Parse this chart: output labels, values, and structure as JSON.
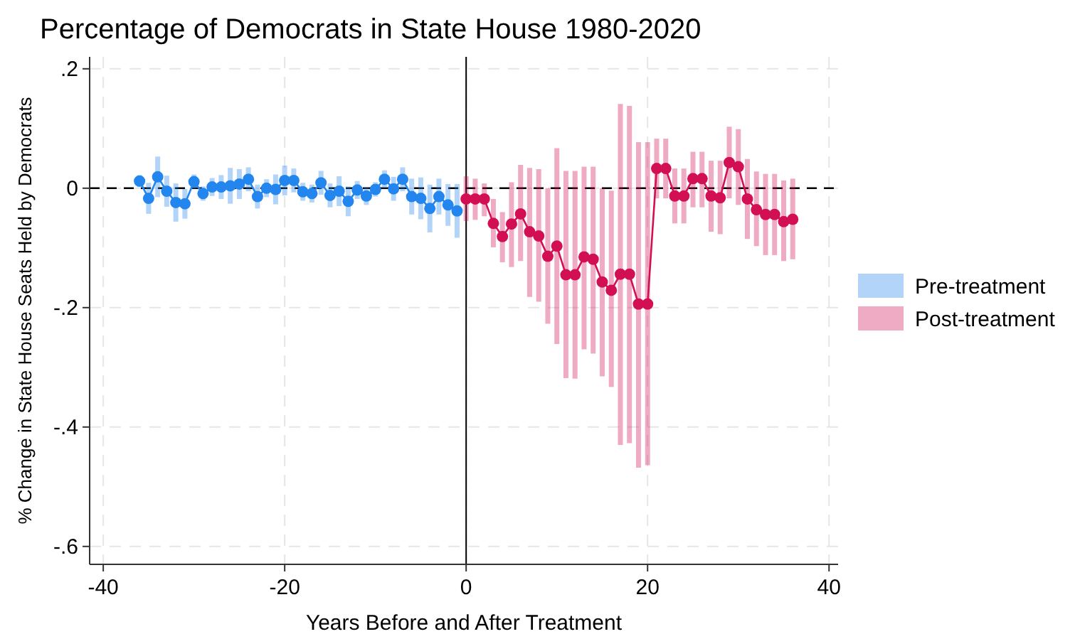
{
  "chart_data": {
    "type": "line",
    "title": "Percentage of Democrats in State House 1980-2020",
    "xlabel": "Years Before and After Treatment",
    "ylabel": "% Change in State House Seats Held by Democrats",
    "xlim": [
      -41.5,
      41
    ],
    "xticks": [
      -40,
      -20,
      0,
      20,
      40
    ],
    "ylim": [
      -0.63,
      0.22
    ],
    "yticks": [
      {
        "value": 0.2,
        "label": ".2"
      },
      {
        "value": 0,
        "label": "0"
      },
      {
        "value": -0.2,
        "label": "-.2"
      },
      {
        "value": -0.4,
        "label": "-.4"
      },
      {
        "value": -0.6,
        "label": "-.6"
      }
    ],
    "grid": true,
    "legend": "right",
    "marker": "circle",
    "line_style": "solid",
    "ref_lines": [
      {
        "axis": "y",
        "value": 0,
        "line_style": "dashed",
        "color": "#000000"
      },
      {
        "axis": "x",
        "value": 0,
        "line_style": "solid",
        "color": "#000000"
      }
    ],
    "series": [
      {
        "name": "Pre-treatment",
        "color": "#2385ee",
        "x": [
          -36,
          -35,
          -34,
          -33,
          -32,
          -31,
          -30,
          -29,
          -28,
          -27,
          -26,
          -25,
          -24,
          -23,
          -22,
          -21,
          -20,
          -19,
          -18,
          -17,
          -16,
          -15,
          -14,
          -13,
          -12,
          -11,
          -10,
          -9,
          -8,
          -7,
          -6,
          -5,
          -4,
          -3,
          -2,
          -1
        ],
        "values": [
          0.012,
          -0.017,
          0.019,
          -0.005,
          -0.024,
          -0.026,
          0.011,
          -0.009,
          0.002,
          0.002,
          0.004,
          0.007,
          0.015,
          -0.014,
          0,
          -0.002,
          0.013,
          0.013,
          -0.006,
          -0.009,
          0.009,
          -0.012,
          -0.005,
          -0.022,
          -0.003,
          -0.013,
          -0.002,
          0.015,
          -0.001,
          0.015,
          -0.014,
          -0.017,
          -0.034,
          -0.014,
          -0.028,
          -0.038
        ],
        "errors": [
          0.01,
          0.026,
          0.034,
          0.026,
          0.032,
          0.025,
          0.012,
          0.012,
          0.015,
          0.02,
          0.03,
          0.025,
          0.02,
          0.02,
          0.015,
          0.025,
          0.025,
          0.02,
          0.015,
          0.015,
          0.02,
          0.02,
          0.025,
          0.025,
          0.015,
          0.015,
          0.012,
          0.015,
          0.02,
          0.02,
          0.03,
          0.035,
          0.04,
          0.03,
          0.035,
          0.045
        ]
      },
      {
        "name": "Post-treatment",
        "color": "#d20f52",
        "x": [
          0,
          1,
          2,
          3,
          4,
          5,
          6,
          7,
          8,
          9,
          10,
          11,
          12,
          13,
          14,
          15,
          16,
          17,
          18,
          19,
          20,
          21,
          22,
          23,
          24,
          25,
          26,
          27,
          28,
          29,
          30,
          31,
          32,
          33,
          34,
          35,
          36
        ],
        "values": [
          -0.018,
          -0.018,
          -0.018,
          -0.059,
          -0.081,
          -0.06,
          -0.043,
          -0.073,
          -0.08,
          -0.114,
          -0.097,
          -0.145,
          -0.145,
          -0.115,
          -0.119,
          -0.157,
          -0.171,
          -0.144,
          -0.144,
          -0.194,
          -0.194,
          0.033,
          0.033,
          -0.013,
          -0.013,
          0.016,
          0.016,
          -0.013,
          -0.016,
          0.043,
          0.036,
          -0.018,
          -0.036,
          -0.044,
          -0.044,
          -0.056,
          -0.052
        ],
        "errors": [
          [
            -0.055,
            0.02
          ],
          [
            -0.053,
            0.016
          ],
          [
            -0.047,
            0.008
          ],
          [
            -0.099,
            -0.018
          ],
          [
            -0.124,
            -0.04
          ],
          [
            -0.132,
            0.01
          ],
          [
            -0.122,
            0.039
          ],
          [
            -0.182,
            0.034
          ],
          [
            -0.19,
            0.032
          ],
          [
            -0.227,
            0
          ],
          [
            -0.261,
            0.067
          ],
          [
            -0.318,
            0.029
          ],
          [
            -0.319,
            0.029
          ],
          [
            -0.27,
            0.036
          ],
          [
            -0.277,
            0.036
          ],
          [
            -0.315,
            0
          ],
          [
            -0.333,
            -0.004
          ],
          [
            -0.43,
            0.141
          ],
          [
            -0.427,
            0.138
          ],
          [
            -0.468,
            0.077
          ],
          [
            -0.464,
            0.077
          ],
          [
            -0.017,
            0.083
          ],
          [
            -0.017,
            0.083
          ],
          [
            -0.059,
            0.033
          ],
          [
            -0.059,
            0.033
          ],
          [
            -0.032,
            0.061
          ],
          [
            -0.032,
            0.061
          ],
          [
            -0.073,
            0.046
          ],
          [
            -0.077,
            0.046
          ],
          [
            -0.017,
            0.103
          ],
          [
            -0.028,
            0.099
          ],
          [
            -0.085,
            0.049
          ],
          [
            -0.097,
            0.028
          ],
          [
            -0.112,
            0.024
          ],
          [
            -0.112,
            0.024
          ],
          [
            -0.122,
            0.013
          ],
          [
            -0.119,
            0.016
          ]
        ]
      }
    ]
  }
}
